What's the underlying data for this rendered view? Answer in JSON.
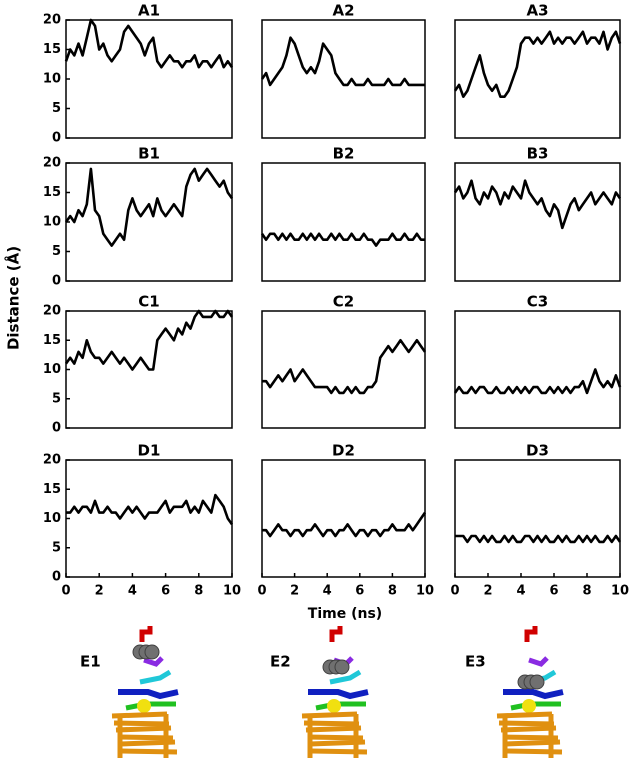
{
  "y_label": "Distance (Å)",
  "x_label": "Time (ns)",
  "images": [
    {
      "label": "E1"
    },
    {
      "label": "E2"
    },
    {
      "label": "E3"
    }
  ],
  "chart_data": [
    {
      "type": "line",
      "title": "A1",
      "color": "#000000",
      "xlim": [
        0,
        10
      ],
      "ylim": [
        0,
        20
      ],
      "yticks": [
        0,
        5,
        10,
        15,
        20
      ],
      "x": [
        0,
        0.25,
        0.5,
        0.75,
        1,
        1.25,
        1.5,
        1.75,
        2,
        2.25,
        2.5,
        2.75,
        3,
        3.25,
        3.5,
        3.75,
        4,
        4.25,
        4.5,
        4.75,
        5,
        5.25,
        5.5,
        5.75,
        6,
        6.25,
        6.5,
        6.75,
        7,
        7.25,
        7.5,
        7.75,
        8,
        8.25,
        8.5,
        8.75,
        9,
        9.25,
        9.5,
        9.75,
        10
      ],
      "values": [
        13,
        15,
        14,
        16,
        14,
        17,
        20,
        19,
        15,
        16,
        14,
        13,
        14,
        15,
        18,
        19,
        18,
        17,
        16,
        14,
        16,
        17,
        13,
        12,
        13,
        14,
        13,
        13,
        12,
        13,
        13,
        14,
        12,
        13,
        13,
        12,
        13,
        14,
        12,
        13,
        12
      ]
    },
    {
      "type": "line",
      "title": "A2",
      "color": "#000000",
      "xlim": [
        0,
        10
      ],
      "ylim": [
        0,
        20
      ],
      "x": [
        0,
        0.25,
        0.5,
        0.75,
        1,
        1.25,
        1.5,
        1.75,
        2,
        2.25,
        2.5,
        2.75,
        3,
        3.25,
        3.5,
        3.75,
        4,
        4.25,
        4.5,
        4.75,
        5,
        5.25,
        5.5,
        5.75,
        6,
        6.25,
        6.5,
        6.75,
        7,
        7.25,
        7.5,
        7.75,
        8,
        8.25,
        8.5,
        8.75,
        9,
        9.25,
        9.5,
        9.75,
        10
      ],
      "values": [
        10,
        11,
        9,
        10,
        11,
        12,
        14,
        17,
        16,
        14,
        12,
        11,
        12,
        11,
        13,
        16,
        15,
        14,
        11,
        10,
        9,
        9,
        10,
        9,
        9,
        9,
        10,
        9,
        9,
        9,
        9,
        10,
        9,
        9,
        9,
        10,
        9,
        9,
        9,
        9,
        9
      ]
    },
    {
      "type": "line",
      "title": "A3",
      "color": "#000000",
      "xlim": [
        0,
        10
      ],
      "ylim": [
        0,
        20
      ],
      "x": [
        0,
        0.25,
        0.5,
        0.75,
        1,
        1.25,
        1.5,
        1.75,
        2,
        2.25,
        2.5,
        2.75,
        3,
        3.25,
        3.5,
        3.75,
        4,
        4.25,
        4.5,
        4.75,
        5,
        5.25,
        5.5,
        5.75,
        6,
        6.25,
        6.5,
        6.75,
        7,
        7.25,
        7.5,
        7.75,
        8,
        8.25,
        8.5,
        8.75,
        9,
        9.25,
        9.5,
        9.75,
        10
      ],
      "values": [
        8,
        9,
        7,
        8,
        10,
        12,
        14,
        11,
        9,
        8,
        9,
        7,
        7,
        8,
        10,
        12,
        16,
        17,
        17,
        16,
        17,
        16,
        17,
        18,
        16,
        17,
        16,
        17,
        17,
        16,
        17,
        18,
        16,
        17,
        17,
        16,
        18,
        15,
        17,
        18,
        16
      ]
    },
    {
      "type": "line",
      "title": "B1",
      "color": "#000000",
      "xlim": [
        0,
        10
      ],
      "ylim": [
        0,
        20
      ],
      "yticks": [
        0,
        5,
        10,
        15,
        20
      ],
      "x": [
        0,
        0.25,
        0.5,
        0.75,
        1,
        1.25,
        1.5,
        1.75,
        2,
        2.25,
        2.5,
        2.75,
        3,
        3.25,
        3.5,
        3.75,
        4,
        4.25,
        4.5,
        4.75,
        5,
        5.25,
        5.5,
        5.75,
        6,
        6.25,
        6.5,
        6.75,
        7,
        7.25,
        7.5,
        7.75,
        8,
        8.25,
        8.5,
        8.75,
        9,
        9.25,
        9.5,
        9.75,
        10
      ],
      "values": [
        10,
        11,
        10,
        12,
        11,
        13,
        19,
        12,
        11,
        8,
        7,
        6,
        7,
        8,
        7,
        12,
        14,
        12,
        11,
        12,
        13,
        11,
        14,
        12,
        11,
        12,
        13,
        12,
        11,
        16,
        18,
        19,
        17,
        18,
        19,
        18,
        17,
        16,
        17,
        15,
        14
      ]
    },
    {
      "type": "line",
      "title": "B2",
      "color": "#000000",
      "xlim": [
        0,
        10
      ],
      "ylim": [
        0,
        20
      ],
      "x": [
        0,
        0.25,
        0.5,
        0.75,
        1,
        1.25,
        1.5,
        1.75,
        2,
        2.25,
        2.5,
        2.75,
        3,
        3.25,
        3.5,
        3.75,
        4,
        4.25,
        4.5,
        4.75,
        5,
        5.25,
        5.5,
        5.75,
        6,
        6.25,
        6.5,
        6.75,
        7,
        7.25,
        7.5,
        7.75,
        8,
        8.25,
        8.5,
        8.75,
        9,
        9.25,
        9.5,
        9.75,
        10
      ],
      "values": [
        8,
        7,
        8,
        8,
        7,
        8,
        7,
        8,
        7,
        7,
        8,
        7,
        8,
        7,
        8,
        7,
        7,
        8,
        7,
        8,
        7,
        7,
        8,
        7,
        7,
        8,
        7,
        7,
        6,
        7,
        7,
        7,
        8,
        7,
        7,
        8,
        7,
        7,
        8,
        7,
        7
      ]
    },
    {
      "type": "line",
      "title": "B3",
      "color": "#000000",
      "xlim": [
        0,
        10
      ],
      "ylim": [
        0,
        20
      ],
      "x": [
        0,
        0.25,
        0.5,
        0.75,
        1,
        1.25,
        1.5,
        1.75,
        2,
        2.25,
        2.5,
        2.75,
        3,
        3.25,
        3.5,
        3.75,
        4,
        4.25,
        4.5,
        4.75,
        5,
        5.25,
        5.5,
        5.75,
        6,
        6.25,
        6.5,
        6.75,
        7,
        7.25,
        7.5,
        7.75,
        8,
        8.25,
        8.5,
        8.75,
        9,
        9.25,
        9.5,
        9.75,
        10
      ],
      "values": [
        15,
        16,
        14,
        15,
        17,
        14,
        13,
        15,
        14,
        16,
        15,
        13,
        15,
        14,
        16,
        15,
        14,
        17,
        15,
        14,
        13,
        14,
        12,
        11,
        13,
        12,
        9,
        11,
        13,
        14,
        12,
        13,
        14,
        15,
        13,
        14,
        15,
        14,
        13,
        15,
        14
      ]
    },
    {
      "type": "line",
      "title": "C1",
      "color": "#000000",
      "xlim": [
        0,
        10
      ],
      "ylim": [
        0,
        20
      ],
      "yticks": [
        0,
        5,
        10,
        15,
        20
      ],
      "x": [
        0,
        0.25,
        0.5,
        0.75,
        1,
        1.25,
        1.5,
        1.75,
        2,
        2.25,
        2.5,
        2.75,
        3,
        3.25,
        3.5,
        3.75,
        4,
        4.25,
        4.5,
        4.75,
        5,
        5.25,
        5.5,
        5.75,
        6,
        6.25,
        6.5,
        6.75,
        7,
        7.25,
        7.5,
        7.75,
        8,
        8.25,
        8.5,
        8.75,
        9,
        9.25,
        9.5,
        9.75,
        10
      ],
      "values": [
        11,
        12,
        11,
        13,
        12,
        15,
        13,
        12,
        12,
        11,
        12,
        13,
        12,
        11,
        12,
        11,
        10,
        11,
        12,
        11,
        10,
        10,
        15,
        16,
        17,
        16,
        15,
        17,
        16,
        18,
        17,
        19,
        20,
        19,
        19,
        19,
        20,
        19,
        19,
        20,
        19
      ]
    },
    {
      "type": "line",
      "title": "C2",
      "color": "#000000",
      "xlim": [
        0,
        10
      ],
      "ylim": [
        0,
        20
      ],
      "x": [
        0,
        0.25,
        0.5,
        0.75,
        1,
        1.25,
        1.5,
        1.75,
        2,
        2.25,
        2.5,
        2.75,
        3,
        3.25,
        3.5,
        3.75,
        4,
        4.25,
        4.5,
        4.75,
        5,
        5.25,
        5.5,
        5.75,
        6,
        6.25,
        6.5,
        6.75,
        7,
        7.25,
        7.5,
        7.75,
        8,
        8.25,
        8.5,
        8.75,
        9,
        9.25,
        9.5,
        9.75,
        10
      ],
      "values": [
        8,
        8,
        7,
        8,
        9,
        8,
        9,
        10,
        8,
        9,
        10,
        9,
        8,
        7,
        7,
        7,
        7,
        6,
        7,
        6,
        6,
        7,
        6,
        7,
        6,
        6,
        7,
        7,
        8,
        12,
        13,
        14,
        13,
        14,
        15,
        14,
        13,
        14,
        15,
        14,
        13
      ]
    },
    {
      "type": "line",
      "title": "C3",
      "color": "#000000",
      "xlim": [
        0,
        10
      ],
      "ylim": [
        0,
        20
      ],
      "x": [
        0,
        0.25,
        0.5,
        0.75,
        1,
        1.25,
        1.5,
        1.75,
        2,
        2.25,
        2.5,
        2.75,
        3,
        3.25,
        3.5,
        3.75,
        4,
        4.25,
        4.5,
        4.75,
        5,
        5.25,
        5.5,
        5.75,
        6,
        6.25,
        6.5,
        6.75,
        7,
        7.25,
        7.5,
        7.75,
        8,
        8.25,
        8.5,
        8.75,
        9,
        9.25,
        9.5,
        9.75,
        10
      ],
      "values": [
        6,
        7,
        6,
        6,
        7,
        6,
        7,
        7,
        6,
        6,
        7,
        6,
        6,
        7,
        6,
        7,
        6,
        7,
        6,
        7,
        7,
        6,
        6,
        7,
        6,
        7,
        6,
        7,
        6,
        7,
        7,
        8,
        6,
        8,
        10,
        8,
        7,
        8,
        7,
        9,
        7
      ]
    },
    {
      "type": "line",
      "title": "D1",
      "color": "#000000",
      "xlim": [
        0,
        10
      ],
      "ylim": [
        0,
        20
      ],
      "yticks": [
        0,
        5,
        10,
        15,
        20
      ],
      "xticks": [
        0,
        2,
        4,
        6,
        8,
        10
      ],
      "x": [
        0,
        0.25,
        0.5,
        0.75,
        1,
        1.25,
        1.5,
        1.75,
        2,
        2.25,
        2.5,
        2.75,
        3,
        3.25,
        3.5,
        3.75,
        4,
        4.25,
        4.5,
        4.75,
        5,
        5.25,
        5.5,
        5.75,
        6,
        6.25,
        6.5,
        6.75,
        7,
        7.25,
        7.5,
        7.75,
        8,
        8.25,
        8.5,
        8.75,
        9,
        9.25,
        9.5,
        9.75,
        10
      ],
      "values": [
        11,
        11,
        12,
        11,
        12,
        12,
        11,
        13,
        11,
        11,
        12,
        11,
        11,
        10,
        11,
        12,
        11,
        12,
        11,
        10,
        11,
        11,
        11,
        12,
        13,
        11,
        12,
        12,
        12,
        13,
        11,
        12,
        11,
        13,
        12,
        11,
        14,
        13,
        12,
        10,
        9
      ]
    },
    {
      "type": "line",
      "title": "D2",
      "color": "#000000",
      "xlim": [
        0,
        10
      ],
      "ylim": [
        0,
        20
      ],
      "xticks": [
        0,
        2,
        4,
        6,
        8,
        10
      ],
      "x": [
        0,
        0.25,
        0.5,
        0.75,
        1,
        1.25,
        1.5,
        1.75,
        2,
        2.25,
        2.5,
        2.75,
        3,
        3.25,
        3.5,
        3.75,
        4,
        4.25,
        4.5,
        4.75,
        5,
        5.25,
        5.5,
        5.75,
        6,
        6.25,
        6.5,
        6.75,
        7,
        7.25,
        7.5,
        7.75,
        8,
        8.25,
        8.5,
        8.75,
        9,
        9.25,
        9.5,
        9.75,
        10
      ],
      "values": [
        8,
        8,
        7,
        8,
        9,
        8,
        8,
        7,
        8,
        8,
        7,
        8,
        8,
        9,
        8,
        7,
        8,
        8,
        7,
        8,
        8,
        9,
        8,
        7,
        8,
        8,
        7,
        8,
        8,
        7,
        8,
        8,
        9,
        8,
        8,
        8,
        9,
        8,
        9,
        10,
        11
      ]
    },
    {
      "type": "line",
      "title": "D3",
      "color": "#000000",
      "xlim": [
        0,
        10
      ],
      "ylim": [
        0,
        20
      ],
      "xticks": [
        0,
        2,
        4,
        6,
        8,
        10
      ],
      "x": [
        0,
        0.25,
        0.5,
        0.75,
        1,
        1.25,
        1.5,
        1.75,
        2,
        2.25,
        2.5,
        2.75,
        3,
        3.25,
        3.5,
        3.75,
        4,
        4.25,
        4.5,
        4.75,
        5,
        5.25,
        5.5,
        5.75,
        6,
        6.25,
        6.5,
        6.75,
        7,
        7.25,
        7.5,
        7.75,
        8,
        8.25,
        8.5,
        8.75,
        9,
        9.25,
        9.5,
        9.75,
        10
      ],
      "values": [
        7,
        7,
        7,
        6,
        7,
        7,
        6,
        7,
        6,
        7,
        6,
        6,
        7,
        6,
        7,
        6,
        6,
        7,
        7,
        6,
        7,
        6,
        7,
        6,
        6,
        7,
        6,
        7,
        6,
        6,
        7,
        6,
        7,
        6,
        7,
        6,
        6,
        7,
        6,
        7,
        6
      ]
    }
  ]
}
